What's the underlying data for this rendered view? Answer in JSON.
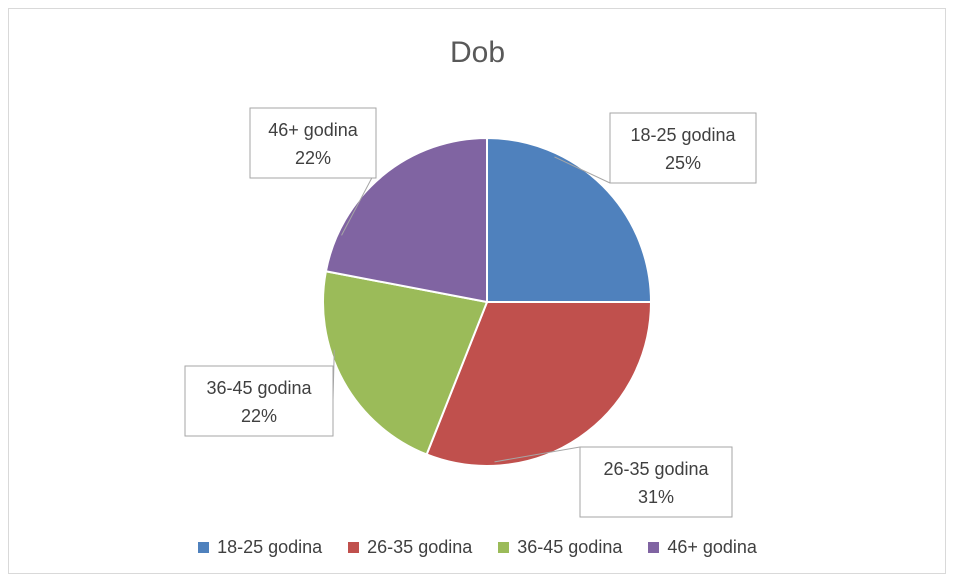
{
  "chart_data": {
    "type": "pie",
    "title": "Dob",
    "categories": [
      "18-25 godina",
      "26-35 godina",
      "36-45 godina",
      "46+ godina"
    ],
    "values": [
      25,
      31,
      22,
      22
    ],
    "value_labels": [
      "25%",
      "31%",
      "22%",
      "22%"
    ],
    "colors": [
      "#4f81bd",
      "#c0504d",
      "#9bbb59",
      "#8064a2"
    ],
    "legend_position": "bottom"
  }
}
